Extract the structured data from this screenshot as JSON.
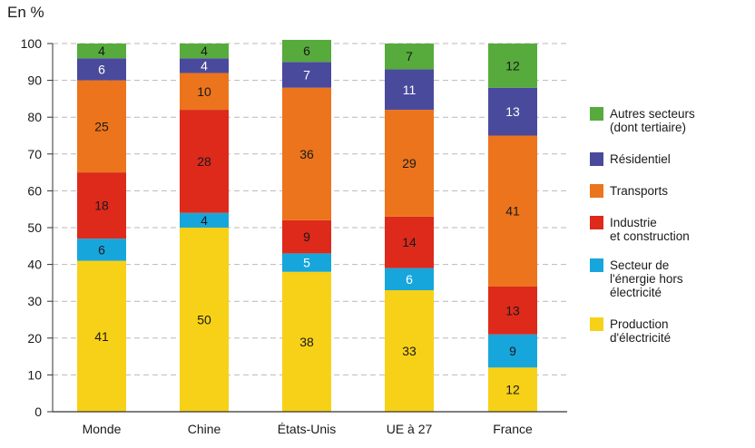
{
  "unit_label": "En %",
  "chart_data": {
    "type": "bar",
    "stacked": true,
    "categories": [
      "Monde",
      "Chine",
      "États-Unis",
      "UE à 27",
      "France"
    ],
    "ylim": [
      0,
      100
    ],
    "yticks": [
      0,
      10,
      20,
      30,
      40,
      50,
      60,
      70,
      80,
      90,
      100
    ],
    "grid": true,
    "legend_position": "right",
    "series": [
      {
        "name": "Production\nd'électricité",
        "color": "#f7d117",
        "values": [
          41,
          50,
          38,
          33,
          12
        ]
      },
      {
        "name": "Secteur de\nl'énergie hors\nélectricité",
        "color": "#17a6dc",
        "values": [
          6,
          4,
          5,
          6,
          9
        ]
      },
      {
        "name": "Industrie\net construction",
        "color": "#dd2a1b",
        "values": [
          18,
          28,
          9,
          14,
          13
        ]
      },
      {
        "name": "Transports",
        "color": "#ec741c",
        "values": [
          25,
          10,
          36,
          29,
          41
        ]
      },
      {
        "name": "Résidentiel",
        "color": "#4a4a9c",
        "values": [
          6,
          4,
          7,
          11,
          13
        ]
      },
      {
        "name": "Autres secteurs\n(dont tertiaire)",
        "color": "#56ab3c",
        "values": [
          4,
          4,
          6,
          7,
          12
        ]
      }
    ],
    "segment_labels": [
      [
        "41",
        "50",
        "38",
        "33",
        "12"
      ],
      [
        "6",
        "4",
        "5",
        "6",
        "9"
      ],
      [
        "18",
        "28",
        "9",
        "14",
        "13"
      ],
      [
        "25",
        "10",
        "36",
        "29",
        "41"
      ],
      [
        "6",
        "4",
        "7",
        "11",
        "13"
      ],
      [
        "4",
        "4",
        "6",
        "7",
        "12"
      ]
    ],
    "segment_label_colors": [
      [
        "#1a1a1a",
        "#1a1a1a",
        "#1a1a1a",
        "#1a1a1a",
        "#1a1a1a"
      ],
      [
        "#1a1a1a",
        "#1a1a1a",
        "#ffffff",
        "#ffffff",
        "#1a1a1a"
      ],
      [
        "#1a1a1a",
        "#1a1a1a",
        "#1a1a1a",
        "#1a1a1a",
        "#1a1a1a"
      ],
      [
        "#1a1a1a",
        "#1a1a1a",
        "#1a1a1a",
        "#1a1a1a",
        "#1a1a1a"
      ],
      [
        "#ffffff",
        "#ffffff",
        "#ffffff",
        "#ffffff",
        "#ffffff"
      ],
      [
        "#1a1a1a",
        "#1a1a1a",
        "#1a1a1a",
        "#1a1a1a",
        "#1a1a1a"
      ]
    ],
    "legend_order": [
      5,
      4,
      3,
      2,
      1,
      0
    ]
  }
}
